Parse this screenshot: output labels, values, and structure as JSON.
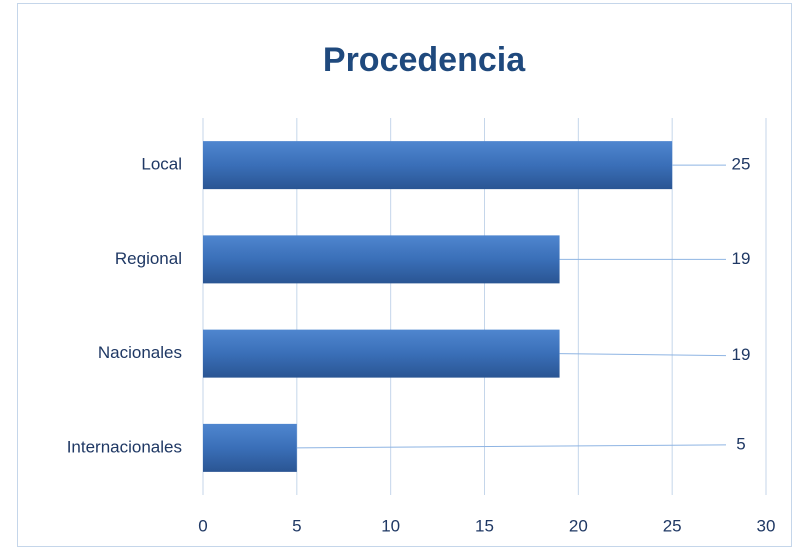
{
  "chart_data": {
    "type": "bar",
    "orientation": "horizontal",
    "title": "Procedencia",
    "categories": [
      "Local",
      "Regional",
      "Nacionales",
      "Internacionales"
    ],
    "values": [
      25,
      19,
      19,
      5
    ],
    "color": "#3a6fb8",
    "xlim": [
      0,
      30
    ],
    "xticks": [
      0,
      5,
      10,
      15,
      20,
      25,
      30
    ],
    "grid": true
  }
}
